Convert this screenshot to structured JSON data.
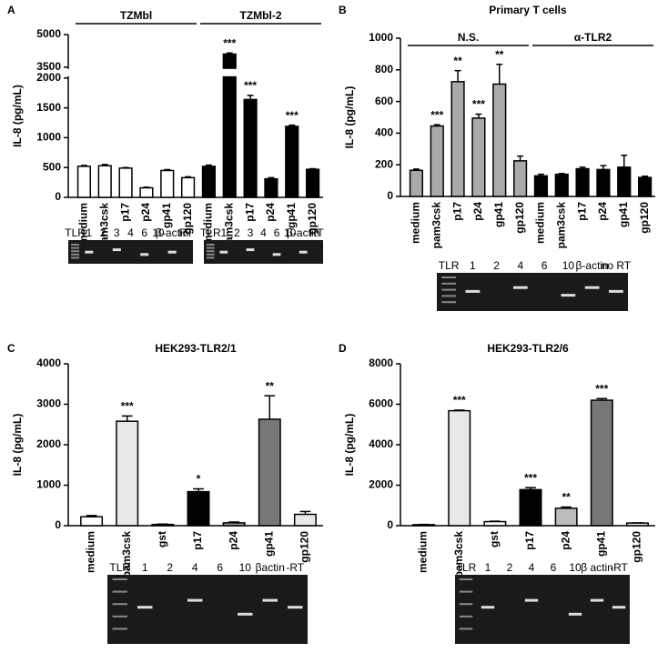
{
  "chart_data": [
    {
      "type": "bar",
      "panel": "A",
      "y_label": "IL-8 (pg/mL)",
      "ylim": [
        0,
        5000
      ],
      "axis_break": [
        2000,
        3500
      ],
      "yticks": [
        0,
        500,
        1000,
        1500,
        2000,
        3500,
        5000
      ],
      "groups": [
        {
          "label": "TZMbl",
          "categories": [
            "medium",
            "pam3csk",
            "p17",
            "p24",
            "gp41",
            "gp120"
          ],
          "values": [
            520,
            530,
            490,
            160,
            450,
            330
          ],
          "errors": [
            15,
            20,
            10,
            10,
            15,
            15
          ],
          "colors": [
            "#ffffff",
            "#ffffff",
            "#ffffff",
            "#ffffff",
            "#ffffff",
            "#ffffff"
          ],
          "annotations": [
            null,
            null,
            null,
            null,
            null,
            null
          ]
        },
        {
          "label": "TZMbl-2",
          "categories": [
            "medium",
            "pam3csk",
            "p17",
            "p24",
            "gp41",
            "gp120"
          ],
          "values": [
            520,
            4100,
            1640,
            310,
            1190,
            470
          ],
          "errors": [
            20,
            50,
            70,
            20,
            20,
            10
          ],
          "colors": [
            "#000000",
            "#000000",
            "#000000",
            "#000000",
            "#000000",
            "#000000"
          ],
          "annotations": [
            null,
            "***",
            "***",
            null,
            "***",
            null
          ]
        }
      ],
      "gels": [
        [
          "TLR",
          "1",
          "2",
          "3",
          "4",
          "6",
          "10",
          "β-actin",
          "RT"
        ],
        [
          "TLR",
          "1",
          "2",
          "3",
          "4",
          "6",
          "10",
          "β-actin",
          "RT"
        ]
      ]
    },
    {
      "type": "bar",
      "panel": "B",
      "title": "Primary T cells",
      "y_label": "IL-8 (pg/mL)",
      "ylim": [
        0,
        1000
      ],
      "yticks": [
        0,
        200,
        400,
        600,
        800,
        1000
      ],
      "groups": [
        {
          "label": "N.S.",
          "categories": [
            "medium",
            "pam3csk",
            "p17",
            "p24",
            "gp41",
            "gp120"
          ],
          "values": [
            165,
            445,
            725,
            495,
            710,
            225
          ],
          "errors": [
            8,
            8,
            70,
            25,
            125,
            30
          ],
          "colors": [
            "#aaaaaa",
            "#aaaaaa",
            "#aaaaaa",
            "#aaaaaa",
            "#aaaaaa",
            "#aaaaaa"
          ],
          "annotations": [
            null,
            "***",
            "**",
            "***",
            "**",
            null
          ]
        },
        {
          "label": "α-TLR2",
          "categories": [
            "medium",
            "pam3csk",
            "p17",
            "p24",
            "gp41",
            "gp120"
          ],
          "values": [
            130,
            140,
            175,
            170,
            185,
            120
          ],
          "errors": [
            10,
            5,
            10,
            25,
            75,
            8
          ],
          "colors": [
            "#000000",
            "#000000",
            "#000000",
            "#000000",
            "#000000",
            "#000000"
          ],
          "annotations": [
            null,
            null,
            null,
            null,
            null,
            null
          ]
        }
      ],
      "gels": [
        [
          "TLR",
          "1",
          "2",
          "4",
          "6",
          "10",
          "β-actin",
          "no RT"
        ]
      ]
    },
    {
      "type": "bar",
      "panel": "C",
      "title": "HEK293-TLR2/1",
      "y_label": "IL-8 (pg/mL)",
      "ylim": [
        0,
        4000
      ],
      "yticks": [
        0,
        1000,
        2000,
        3000,
        4000
      ],
      "groups": [
        {
          "categories": [
            "medium",
            "pam3csk",
            "gst",
            "p17",
            "p24",
            "gp41",
            "gp120"
          ],
          "values": [
            220,
            2580,
            30,
            840,
            70,
            2630,
            280
          ],
          "errors": [
            30,
            130,
            10,
            70,
            20,
            580,
            70
          ],
          "colors": [
            "#ffffff",
            "#e8e8e8",
            "#ffffff",
            "#000000",
            "#9a9a9a",
            "#777777",
            "#e8e8e8"
          ],
          "annotations": [
            null,
            "***",
            null,
            "*",
            null,
            "**",
            null
          ]
        }
      ],
      "gels": [
        [
          "TLR",
          "1",
          "2",
          "4",
          "6",
          "10",
          "βactin",
          "-RT"
        ]
      ]
    },
    {
      "type": "bar",
      "panel": "D",
      "title": "HEK293-TLR2/6",
      "y_label": "IL-8 (pg/mL)",
      "ylim": [
        0,
        8000
      ],
      "yticks": [
        0,
        2000,
        4000,
        6000,
        8000
      ],
      "groups": [
        {
          "categories": [
            "medium",
            "pam3csk",
            "gst",
            "p17",
            "p24",
            "gp41",
            "gp120"
          ],
          "values": [
            50,
            5680,
            200,
            1780,
            860,
            6200,
            130
          ],
          "errors": [
            10,
            30,
            20,
            100,
            60,
            80,
            10
          ],
          "colors": [
            "#ffffff",
            "#e8e8e8",
            "#ffffff",
            "#000000",
            "#bbbbbb",
            "#777777",
            "#e8e8e8"
          ],
          "annotations": [
            null,
            "***",
            null,
            "***",
            "**",
            "***",
            null
          ]
        }
      ],
      "gels": [
        [
          "TLR",
          "1",
          "2",
          "4",
          "6",
          "10",
          "β actin",
          "-RT"
        ]
      ]
    }
  ]
}
